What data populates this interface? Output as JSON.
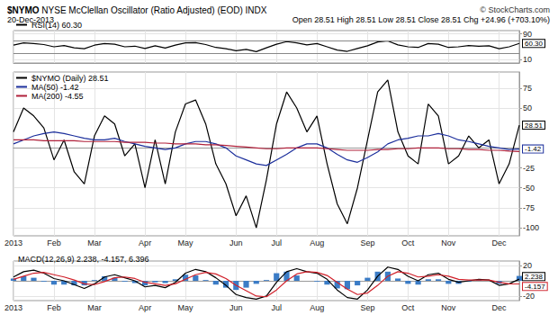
{
  "header": {
    "symbol": "$NYMO",
    "title": "NYSE McClellan Oscillator (Ratio Adjusted) (EOD) INDX",
    "copyright": "© StockCharts.com",
    "date": "20-Dec-2013",
    "quote": "Open 28.51 High 28.51 Low 28.51 Close 28.51 Chg +24.96 (+703.10%)"
  },
  "chart_data": [
    {
      "type": "line",
      "categories": [
        "2013",
        null,
        null,
        null,
        "Feb",
        null,
        null,
        null,
        "Mar",
        null,
        null,
        null,
        null,
        "Apr",
        null,
        null,
        null,
        "May",
        null,
        null,
        null,
        null,
        "Jun",
        null,
        null,
        null,
        "Jul",
        null,
        null,
        null,
        "Aug",
        null,
        null,
        null,
        null,
        "Sep",
        null,
        null,
        null,
        "Oct",
        null,
        null,
        null,
        "Nov",
        null,
        null,
        null,
        null,
        "Dec",
        null,
        null
      ],
      "ylim": [
        0,
        100
      ],
      "yticks": [
        10,
        90
      ],
      "ref_lines": [
        30,
        70
      ],
      "grid": true,
      "legend": "upper left",
      "tick_labels": "y",
      "series": [
        {
          "name": "RSI(14) 60.30",
          "color": "#000000",
          "values": [
            55,
            62,
            60,
            57,
            50,
            54,
            47,
            44,
            55,
            60,
            58,
            50,
            52,
            45,
            53,
            46,
            55,
            62,
            63,
            57,
            48,
            44,
            38,
            42,
            35,
            47,
            58,
            66,
            62,
            56,
            60,
            50,
            40,
            36,
            45,
            53,
            65,
            68,
            56,
            50,
            48,
            60,
            58,
            48,
            50,
            54,
            52,
            53,
            44,
            50,
            60.3
          ],
          "value_labels": [
            null,
            null,
            null,
            null,
            null,
            null,
            null,
            null,
            null,
            null,
            null,
            null,
            null,
            null,
            null,
            null,
            null,
            null,
            null,
            null,
            null,
            null,
            null,
            null,
            null,
            null,
            null,
            null,
            null,
            null,
            null,
            null,
            null,
            null,
            null,
            null,
            null,
            null,
            null,
            null,
            null,
            null,
            null,
            null,
            null,
            null,
            null,
            null,
            null,
            null,
            "60.30"
          ]
        }
      ]
    },
    {
      "type": "line",
      "categories": [
        "2013",
        null,
        null,
        null,
        "Feb",
        null,
        null,
        null,
        "Mar",
        null,
        null,
        null,
        null,
        "Apr",
        null,
        null,
        null,
        "May",
        null,
        null,
        null,
        null,
        "Jun",
        null,
        null,
        null,
        "Jul",
        null,
        null,
        null,
        "Aug",
        null,
        null,
        null,
        null,
        "Sep",
        null,
        null,
        null,
        "Oct",
        null,
        null,
        null,
        "Nov",
        null,
        null,
        null,
        null,
        "Dec",
        null,
        null
      ],
      "ylim": [
        -110,
        95
      ],
      "yticks": [
        -100,
        -75,
        -50,
        -25,
        50,
        75
      ],
      "grid": true,
      "legend": "upper left",
      "series": [
        {
          "name": "$NYMO (Daily) 28.51",
          "color": "#000000",
          "values": [
            20,
            50,
            40,
            25,
            -15,
            10,
            -30,
            -45,
            15,
            40,
            30,
            -10,
            5,
            -50,
            10,
            -45,
            20,
            55,
            60,
            30,
            -20,
            -45,
            -85,
            -60,
            -100,
            -40,
            30,
            70,
            50,
            20,
            40,
            -20,
            -70,
            -95,
            -50,
            10,
            70,
            85,
            20,
            -10,
            -20,
            55,
            40,
            -20,
            -10,
            15,
            0,
            10,
            -45,
            -20,
            28.51
          ],
          "value_labels": [
            null,
            null,
            null,
            null,
            null,
            null,
            null,
            null,
            null,
            null,
            null,
            null,
            null,
            null,
            null,
            null,
            null,
            null,
            null,
            null,
            null,
            null,
            null,
            null,
            null,
            null,
            null,
            null,
            null,
            null,
            null,
            null,
            null,
            null,
            null,
            null,
            null,
            null,
            null,
            null,
            null,
            null,
            null,
            null,
            null,
            null,
            null,
            null,
            null,
            null,
            "28.51"
          ]
        },
        {
          "name": "MA(50) -1.42",
          "color": "#1c2f9c",
          "values": [
            5,
            10,
            15,
            18,
            20,
            18,
            15,
            12,
            10,
            10,
            12,
            8,
            5,
            2,
            0,
            -2,
            0,
            5,
            8,
            8,
            5,
            0,
            -10,
            -15,
            -20,
            -22,
            -15,
            -8,
            0,
            5,
            5,
            0,
            -8,
            -15,
            -18,
            -12,
            -5,
            5,
            10,
            12,
            15,
            15,
            18,
            15,
            10,
            8,
            5,
            2,
            0,
            -2,
            -1.42
          ],
          "value_labels": [
            null,
            null,
            null,
            null,
            null,
            null,
            null,
            null,
            null,
            null,
            null,
            null,
            null,
            null,
            null,
            null,
            null,
            null,
            null,
            null,
            null,
            null,
            null,
            null,
            null,
            null,
            null,
            null,
            null,
            null,
            null,
            null,
            null,
            null,
            null,
            null,
            null,
            null,
            null,
            null,
            null,
            null,
            null,
            null,
            null,
            null,
            null,
            null,
            null,
            null,
            "-1.42"
          ]
        },
        {
          "name": "MA(200) -4.55",
          "color": "#b0203a",
          "values": [
            10,
            10,
            10,
            9,
            9,
            9,
            9,
            8,
            8,
            8,
            8,
            7,
            7,
            7,
            6,
            6,
            5,
            5,
            5,
            4,
            4,
            3,
            2,
            1,
            0,
            -1,
            -1,
            0,
            0,
            0,
            0,
            -1,
            -2,
            -3,
            -3,
            -3,
            -2,
            -2,
            -1,
            -1,
            0,
            0,
            0,
            -1,
            -1,
            -2,
            -2,
            -3,
            -3,
            -4,
            -4.55
          ]
        }
      ]
    },
    {
      "type": "line",
      "title": "MACD(12,26,9) 2.238, -4.157, 6.396",
      "categories": [
        "2013",
        null,
        null,
        null,
        "Feb",
        null,
        null,
        null,
        "Mar",
        null,
        null,
        null,
        null,
        "Apr",
        null,
        null,
        null,
        "May",
        null,
        null,
        null,
        null,
        "Jun",
        null,
        null,
        null,
        "Jul",
        null,
        null,
        null,
        "Aug",
        null,
        null,
        null,
        null,
        "Sep",
        null,
        null,
        null,
        "Oct",
        null,
        null,
        null,
        "Nov",
        null,
        null,
        null,
        null,
        "Dec",
        null,
        null
      ],
      "ylim": [
        -26,
        26
      ],
      "yticks": [
        -20,
        20
      ],
      "grid": true,
      "series": [
        {
          "type": "bar",
          "color": "#3b7cc6",
          "values": [
            3,
            6,
            4,
            -1,
            -5,
            -5,
            -6,
            -6,
            1,
            6,
            4,
            -1,
            -3,
            -6,
            -2,
            -3,
            2,
            8,
            7,
            1,
            -5,
            -9,
            -12,
            -9,
            -4,
            1,
            10,
            12,
            7,
            0,
            -1,
            -5,
            -10,
            -11,
            -6,
            4,
            12,
            12,
            3,
            -4,
            -5,
            2,
            2,
            -4,
            -4,
            -1,
            1,
            0,
            -4,
            0,
            6.396
          ]
        },
        {
          "type": "line",
          "color": "#000000",
          "values": [
            5,
            12,
            14,
            10,
            3,
            0,
            -5,
            -10,
            -4,
            5,
            8,
            4,
            0,
            -8,
            -6,
            -9,
            -2,
            10,
            15,
            12,
            4,
            -6,
            -18,
            -22,
            -24,
            -20,
            -2,
            12,
            16,
            12,
            10,
            2,
            -12,
            -22,
            -24,
            -12,
            6,
            18,
            15,
            6,
            0,
            8,
            10,
            2,
            -2,
            0,
            2,
            1,
            -6,
            -4,
            2.238
          ],
          "value_labels": [
            null,
            null,
            null,
            null,
            null,
            null,
            null,
            null,
            null,
            null,
            null,
            null,
            null,
            null,
            null,
            null,
            null,
            null,
            null,
            null,
            null,
            null,
            null,
            null,
            null,
            null,
            null,
            null,
            null,
            null,
            null,
            null,
            null,
            null,
            null,
            null,
            null,
            null,
            null,
            null,
            null,
            null,
            null,
            null,
            null,
            null,
            null,
            null,
            null,
            null,
            "2.238"
          ]
        },
        {
          "type": "line",
          "color": "#d0202a",
          "values": [
            2,
            6,
            10,
            11,
            8,
            5,
            1,
            -4,
            -5,
            -1,
            4,
            5,
            3,
            -2,
            -4,
            -6,
            -4,
            2,
            8,
            11,
            9,
            3,
            -6,
            -13,
            -20,
            -21,
            -12,
            0,
            9,
            12,
            11,
            7,
            -2,
            -11,
            -18,
            -16,
            -6,
            6,
            12,
            10,
            5,
            6,
            8,
            6,
            2,
            1,
            1,
            1,
            -2,
            -4,
            -4.157
          ],
          "value_labels": [
            null,
            null,
            null,
            null,
            null,
            null,
            null,
            null,
            null,
            null,
            null,
            null,
            null,
            null,
            null,
            null,
            null,
            null,
            null,
            null,
            null,
            null,
            null,
            null,
            null,
            null,
            null,
            null,
            null,
            null,
            null,
            null,
            null,
            null,
            null,
            null,
            null,
            null,
            null,
            null,
            null,
            null,
            null,
            null,
            null,
            null,
            null,
            null,
            null,
            null,
            "-4.157"
          ]
        }
      ]
    }
  ]
}
